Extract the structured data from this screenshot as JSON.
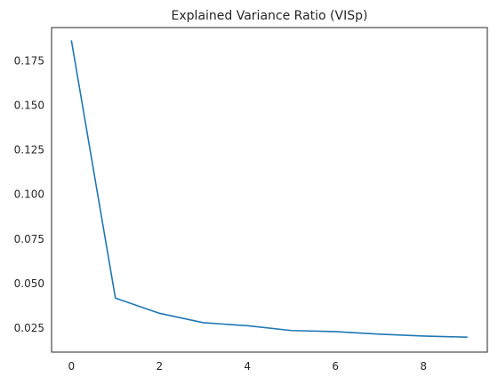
{
  "chart_data": {
    "type": "line",
    "title": "Explained Variance Ratio (VISp)",
    "xlabel": "",
    "ylabel": "",
    "x": [
      0,
      1,
      2,
      3,
      4,
      5,
      6,
      7,
      8,
      9
    ],
    "series": [
      {
        "values": [
          0.1865,
          0.0418,
          0.0333,
          0.028,
          0.0263,
          0.0236,
          0.023,
          0.0216,
          0.0205,
          0.0199
        ]
      }
    ],
    "xlim": [
      -0.45,
      9.45
    ],
    "ylim": [
      0.0115,
      0.1937
    ],
    "xticks": [
      0,
      2,
      4,
      6,
      8
    ],
    "xtick_labels": [
      "0",
      "2",
      "4",
      "6",
      "8"
    ],
    "yticks": [
      0.025,
      0.05,
      0.075,
      0.1,
      0.125,
      0.15,
      0.175
    ],
    "ytick_labels": [
      "0.025",
      "0.050",
      "0.075",
      "0.100",
      "0.125",
      "0.150",
      "0.175"
    ],
    "grid": false,
    "colors": {
      "line": "#1f77b4",
      "axes": "#262626",
      "text": "#262626"
    }
  }
}
